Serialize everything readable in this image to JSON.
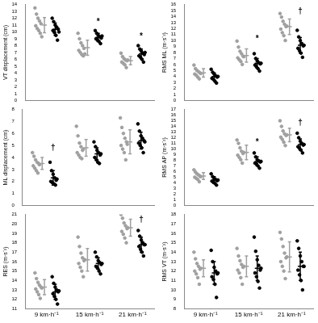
{
  "chart_data": [
    {
      "type": "scatter",
      "ylabel": "VT displacement (cm)",
      "categories": [
        "9 km·h⁻¹",
        "15 km·h⁻¹",
        "21 km·h⁻¹"
      ],
      "ylim": [
        0,
        14
      ],
      "yticks": [
        0,
        1,
        2,
        3,
        4,
        5,
        6,
        7,
        8,
        9,
        10,
        11,
        12,
        13,
        14
      ],
      "grid": false,
      "tick_labels": "y",
      "marker": "circle",
      "series": [
        {
          "color": "#a0a0a0",
          "values": [
            [
              13.5,
              12.6,
              12.0,
              11.6,
              11.2,
              10.9,
              10.5,
              10.2,
              9.8,
              9.3
            ],
            [
              9.8,
              9.0,
              8.4,
              8.0,
              7.6,
              7.3,
              7.0,
              6.7,
              6.5,
              6.8
            ],
            [
              6.9,
              6.4,
              6.1,
              5.9,
              5.8,
              5.6,
              5.4,
              5.2,
              4.8,
              5.9
            ]
          ],
          "mean": [
            11.0,
            7.7,
            5.8
          ],
          "sd": [
            1.1,
            1.1,
            0.6
          ]
        },
        {
          "color": "#000000",
          "values": [
            [
              12.0,
              11.5,
              11.0,
              10.7,
              10.4,
              10.2,
              9.9,
              9.5,
              8.8,
              10.0
            ],
            [
              10.2,
              9.8,
              9.5,
              9.3,
              9.1,
              9.0,
              8.8,
              8.6,
              8.3,
              9.4
            ],
            [
              8.0,
              7.5,
              7.2,
              6.9,
              6.7,
              6.5,
              6.3,
              6.0,
              5.6,
              7.0
            ]
          ],
          "mean": [
            10.4,
            9.2,
            6.8
          ],
          "sd": [
            0.9,
            0.6,
            0.7
          ]
        }
      ],
      "annotations": [
        {
          "category": "15 km·h⁻¹",
          "text": "*",
          "y": 11.5
        },
        {
          "category": "21 km·h⁻¹",
          "text": "*",
          "y": 9.3
        }
      ]
    },
    {
      "type": "scatter",
      "ylabel": "RMS ML (m·s⁻²)",
      "categories": [
        "9 km·h⁻¹",
        "15 km·h⁻¹",
        "21 km·h⁻¹"
      ],
      "ylim": [
        0,
        16
      ],
      "yticks": [
        0,
        1,
        2,
        3,
        4,
        5,
        6,
        7,
        8,
        9,
        10,
        11,
        12,
        13,
        14,
        15,
        16
      ],
      "grid": false,
      "tick_labels": "y",
      "marker": "circle",
      "series": [
        {
          "color": "#a0a0a0",
          "values": [
            [
              5.9,
              5.3,
              5.0,
              4.8,
              4.6,
              4.4,
              4.2,
              3.9,
              3.6,
              4.5
            ],
            [
              9.9,
              8.9,
              8.2,
              7.8,
              7.4,
              7.1,
              6.8,
              6.5,
              6.0,
              7.3
            ],
            [
              14.5,
              13.9,
              13.2,
              12.7,
              12.3,
              11.9,
              11.3,
              10.8,
              10.0,
              12.4
            ]
          ],
          "mean": [
            4.6,
            7.5,
            12.3
          ],
          "sd": [
            0.7,
            1.1,
            1.3
          ]
        },
        {
          "color": "#000000",
          "values": [
            [
              5.2,
              4.7,
              4.4,
              4.1,
              3.9,
              3.7,
              3.5,
              3.2,
              2.9,
              4.0
            ],
            [
              7.8,
              7.0,
              6.6,
              6.3,
              6.1,
              5.9,
              5.6,
              5.3,
              4.9,
              6.2
            ],
            [
              11.7,
              10.6,
              10.0,
              9.5,
              9.1,
              8.7,
              8.3,
              7.9,
              7.2,
              9.2
            ]
          ],
          "mean": [
            4.0,
            6.2,
            9.2
          ],
          "sd": [
            0.6,
            0.8,
            1.3
          ]
        }
      ],
      "annotations": [
        {
          "category": "15 km·h⁻¹",
          "text": "*",
          "y": 10.3
        },
        {
          "category": "21 km·h⁻¹",
          "text": "†",
          "y": 14.8
        }
      ]
    },
    {
      "type": "scatter",
      "ylabel": "ML displacement (cm)",
      "categories": [
        "9 km·h⁻¹",
        "15 km·h⁻¹",
        "21 km·h⁻¹"
      ],
      "ylim": [
        0,
        8
      ],
      "yticks": [
        0,
        1,
        2,
        3,
        4,
        5,
        6,
        7,
        8
      ],
      "grid": false,
      "tick_labels": "y",
      "marker": "circle",
      "series": [
        {
          "color": "#a0a0a0",
          "values": [
            [
              4.4,
              4.1,
              3.8,
              3.6,
              3.5,
              3.3,
              3.1,
              2.9,
              2.7,
              3.4
            ],
            [
              6.6,
              5.8,
              5.2,
              4.9,
              4.6,
              4.4,
              4.2,
              4.0,
              3.9,
              4.7
            ],
            [
              7.3,
              6.5,
              6.0,
              5.6,
              5.3,
              5.0,
              4.7,
              4.4,
              3.8,
              5.1
            ]
          ],
          "mean": [
            3.5,
            4.8,
            5.3
          ],
          "sd": [
            0.5,
            0.7,
            1.0
          ]
        },
        {
          "color": "#000000",
          "values": [
            [
              3.6,
              2.9,
              2.6,
              2.3,
              2.1,
              2.0,
              1.9,
              1.8,
              1.7,
              2.2
            ],
            [
              5.3,
              4.9,
              4.6,
              4.4,
              4.2,
              4.0,
              3.8,
              3.6,
              3.5,
              4.3
            ],
            [
              6.8,
              6.2,
              5.8,
              5.6,
              5.4,
              5.2,
              5.0,
              4.8,
              4.4,
              5.3
            ]
          ],
          "mean": [
            2.3,
            4.3,
            5.4
          ],
          "sd": [
            0.6,
            0.5,
            0.7
          ]
        }
      ],
      "annotations": [
        {
          "category": "9 km·h⁻¹",
          "text": "†",
          "y": 4.8
        }
      ]
    },
    {
      "type": "scatter",
      "ylabel": "RMS AP (m·s⁻²)",
      "categories": [
        "9 km·h⁻¹",
        "15 km·h⁻¹",
        "21 km·h⁻¹"
      ],
      "ylim": [
        0,
        17
      ],
      "yticks": [
        0,
        1,
        2,
        3,
        4,
        5,
        6,
        7,
        8,
        9,
        10,
        11,
        12,
        13,
        14,
        15,
        16,
        17
      ],
      "grid": false,
      "tick_labels": "y",
      "marker": "circle",
      "series": [
        {
          "color": "#a0a0a0",
          "values": [
            [
              6.3,
              5.9,
              5.6,
              5.4,
              5.2,
              5.0,
              4.8,
              4.6,
              4.2,
              5.1
            ],
            [
              11.6,
              11.0,
              10.2,
              9.6,
              9.2,
              8.9,
              8.5,
              8.1,
              7.5,
              9.4
            ],
            [
              15.0,
              14.0,
              13.2,
              12.7,
              12.4,
              12.1,
              11.7,
              11.2,
              10.6,
              12.5
            ]
          ],
          "mean": [
            5.2,
            9.4,
            12.5
          ],
          "sd": [
            0.6,
            1.3,
            1.2
          ]
        },
        {
          "color": "#000000",
          "values": [
            [
              5.6,
              5.1,
              4.8,
              4.6,
              4.4,
              4.3,
              4.1,
              3.9,
              3.6,
              4.5
            ],
            [
              9.3,
              8.6,
              8.1,
              7.9,
              7.7,
              7.5,
              7.3,
              7.0,
              6.6,
              7.8
            ],
            [
              12.8,
              12.0,
              11.4,
              11.0,
              10.7,
              10.4,
              10.1,
              9.8,
              9.3,
              10.8
            ]
          ],
          "mean": [
            4.5,
            7.8,
            10.8
          ],
          "sd": [
            0.6,
            0.8,
            1.0
          ]
        }
      ],
      "annotations": [
        {
          "category": "15 km·h⁻¹",
          "text": "*",
          "y": 11.2
        },
        {
          "category": "21 km·h⁻¹",
          "text": "†",
          "y": 14.6
        }
      ]
    },
    {
      "type": "scatter",
      "ylabel": "RES (m·s⁻²)",
      "categories": [
        "9 km·h⁻¹",
        "15 km·h⁻¹",
        "21 km·h⁻¹"
      ],
      "ylim": [
        11,
        21
      ],
      "yticks": [
        11,
        12,
        13,
        14,
        15,
        16,
        17,
        18,
        19,
        20,
        21
      ],
      "grid": false,
      "marker": "circle",
      "series": [
        {
          "color": "#a0a0a0",
          "values": [
            [
              14.8,
              14.2,
              13.8,
              13.5,
              13.3,
              13.1,
              12.8,
              12.5,
              12.1,
              13.2
            ],
            [
              18.6,
              17.6,
              16.9,
              16.4,
              16.1,
              15.8,
              15.4,
              15.0,
              14.4,
              16.2
            ],
            [
              21.0,
              20.6,
              20.1,
              19.8,
              19.5,
              19.2,
              18.9,
              18.5,
              18.0,
              19.6
            ]
          ],
          "mean": [
            13.3,
            16.2,
            19.6
          ],
          "sd": [
            0.8,
            1.2,
            0.9
          ]
        },
        {
          "color": "#000000",
          "values": [
            [
              14.4,
              13.7,
              13.3,
              13.0,
              12.8,
              12.6,
              12.3,
              12.0,
              11.5,
              12.9
            ],
            [
              17.0,
              16.5,
              16.1,
              15.9,
              15.7,
              15.5,
              15.3,
              15.0,
              14.7,
              15.8
            ],
            [
              19.3,
              18.7,
              18.3,
              18.0,
              17.8,
              17.6,
              17.3,
              17.0,
              16.6,
              17.8
            ]
          ],
          "mean": [
            12.8,
            15.8,
            17.8
          ],
          "sd": [
            0.8,
            0.6,
            0.8
          ]
        }
      ],
      "annotations": [
        {
          "category": "21 km·h⁻¹",
          "text": "†",
          "y": 20.4
        }
      ]
    },
    {
      "type": "scatter",
      "ylabel": "RMS VT (m·s⁻²)",
      "categories": [
        "9 km·h⁻¹",
        "15 km·h⁻¹",
        "21 km·h⁻¹"
      ],
      "ylim": [
        8,
        18
      ],
      "yticks": [
        8,
        9,
        10,
        11,
        12,
        13,
        14,
        15,
        16,
        17,
        18
      ],
      "grid": false,
      "marker": "circle",
      "series": [
        {
          "color": "#a0a0a0",
          "values": [
            [
              14.0,
              13.3,
              12.8,
              12.5,
              12.2,
              12.0,
              11.7,
              11.3,
              10.6,
              12.3
            ],
            [
              14.4,
              13.6,
              13.1,
              12.7,
              12.4,
              12.1,
              11.8,
              11.3,
              10.6,
              12.5
            ],
            [
              16.1,
              15.4,
              14.6,
              13.9,
              13.4,
              13.0,
              12.5,
              12.0,
              11.2,
              13.5
            ]
          ],
          "mean": [
            12.3,
            12.5,
            13.5
          ],
          "sd": [
            0.9,
            1.1,
            1.6
          ]
        },
        {
          "color": "#000000",
          "values": [
            [
              14.2,
              13.0,
              12.4,
              12.0,
              11.7,
              11.4,
              11.1,
              10.6,
              9.2,
              11.8
            ],
            [
              15.6,
              14.1,
              13.2,
              12.6,
              12.1,
              11.8,
              11.4,
              10.9,
              10.2,
              12.3
            ],
            [
              15.2,
              14.4,
              13.6,
              13.0,
              12.5,
              12.1,
              11.6,
              11.0,
              10.0,
              12.5
            ]
          ],
          "mean": [
            11.8,
            12.3,
            12.5
          ],
          "sd": [
            1.2,
            1.3,
            1.5
          ]
        }
      ]
    }
  ]
}
